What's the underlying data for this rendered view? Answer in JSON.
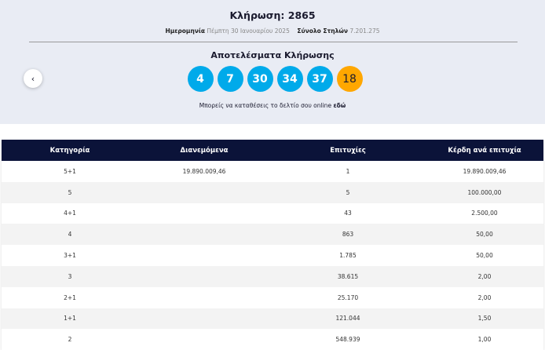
{
  "draw": {
    "title": "Κλήρωση: 2865",
    "date_label": "Ημερομηνία",
    "date_value": "Πέμπτη 30 Ιανουαρίου 2025",
    "columns_label": "Σύνολο Στηλών",
    "columns_value": "7.201.275"
  },
  "results": {
    "title": "Αποτελέσματα Κλήρωσης",
    "numbers": [
      "4",
      "7",
      "30",
      "34",
      "37"
    ],
    "bonus": "18",
    "note": "Μπορείς να καταθέσεις το δελτίο σου online",
    "note_link": "εδώ"
  },
  "back_icon": "‹",
  "colors": {
    "ball": "#00aaea",
    "bonus": "#ffa700",
    "header": "#0b1339"
  },
  "table": {
    "headers": [
      "Κατηγορία",
      "Διανεμόμενα",
      "Επιτυχίες",
      "Κέρδη ανά επιτυχία"
    ],
    "rows": [
      [
        "5+1",
        "19.890.009,46",
        "1",
        "19.890.009,46"
      ],
      [
        "5",
        "",
        "5",
        "100.000,00"
      ],
      [
        "4+1",
        "",
        "43",
        "2.500,00"
      ],
      [
        "4",
        "",
        "863",
        "50,00"
      ],
      [
        "3+1",
        "",
        "1.785",
        "50,00"
      ],
      [
        "3",
        "",
        "38.615",
        "2,00"
      ],
      [
        "2+1",
        "",
        "25.170",
        "2,00"
      ],
      [
        "1+1",
        "",
        "121.044",
        "1,50"
      ],
      [
        "2",
        "",
        "548.939",
        "1,00"
      ]
    ]
  }
}
